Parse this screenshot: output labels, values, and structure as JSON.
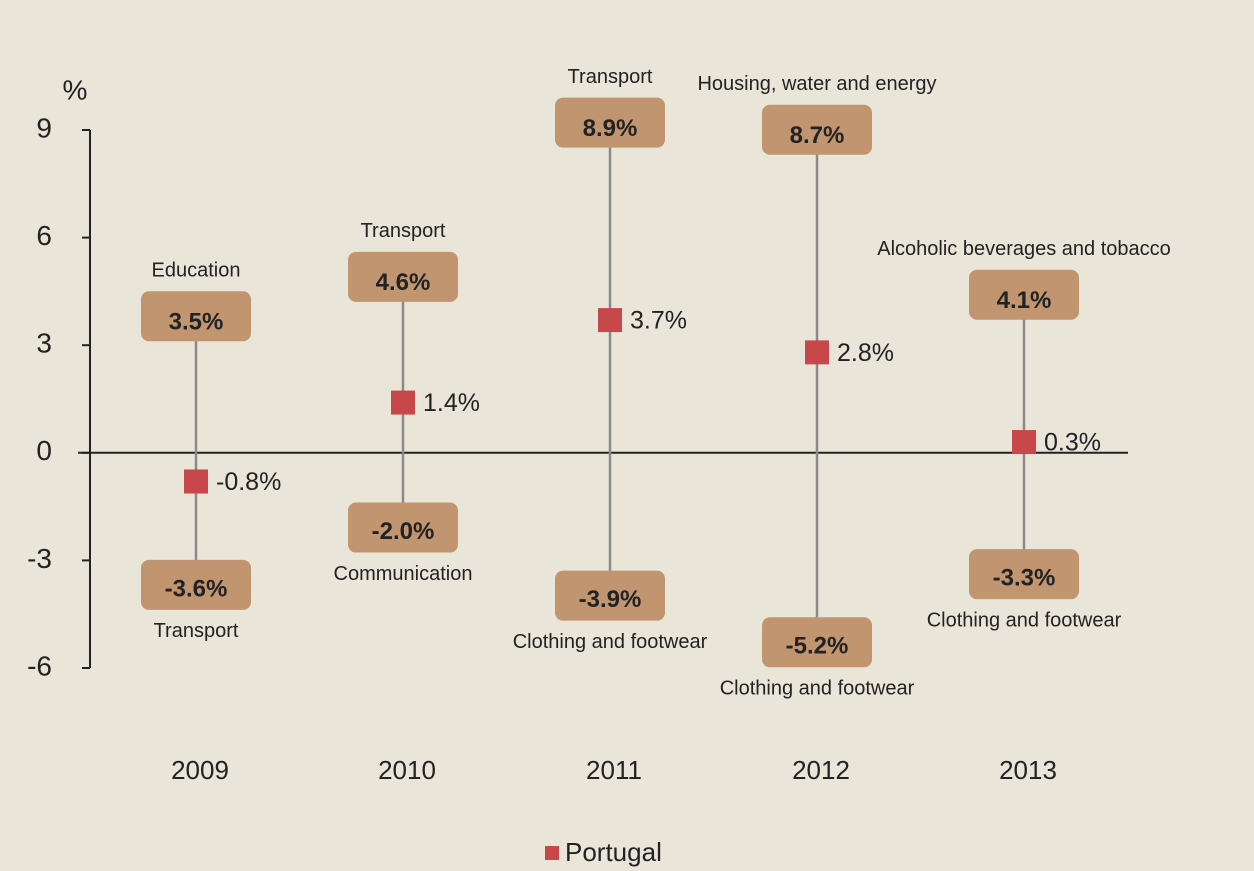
{
  "chart_data": {
    "type": "range",
    "y_label": "%",
    "categories": [
      "2009",
      "2010",
      "2011",
      "2012",
      "2013"
    ],
    "series": [
      {
        "name": "Portugal",
        "color": "#c8474a",
        "values": [
          -0.8,
          1.4,
          3.7,
          2.8,
          0.3
        ],
        "value_labels": [
          "-0.8%",
          "1.4%",
          "3.7%",
          "2.8%",
          "0.3%"
        ]
      }
    ],
    "high": {
      "values": [
        3.5,
        4.6,
        8.9,
        8.7,
        4.1
      ],
      "value_labels": [
        "3.5%",
        "4.6%",
        "8.9%",
        "8.7%",
        "4.1%"
      ],
      "labels": [
        "Education",
        "Transport",
        "Transport",
        "Housing, water and energy",
        "Alcoholic beverages and tobacco"
      ]
    },
    "low": {
      "values": [
        -3.6,
        -2.0,
        -3.9,
        -5.2,
        -3.3
      ],
      "value_labels": [
        "-3.6%",
        "-2.0%",
        "-3.9%",
        "-5.2%",
        "-3.3%"
      ],
      "labels": [
        "Transport",
        "Communication",
        "Clothing and footwear",
        "Clothing and footwear",
        "Clothing and footwear"
      ]
    },
    "icon_color": "#c09570",
    "ylim": [
      -6,
      9
    ],
    "yticks": [
      -6,
      -3,
      0,
      3,
      6,
      9
    ]
  }
}
